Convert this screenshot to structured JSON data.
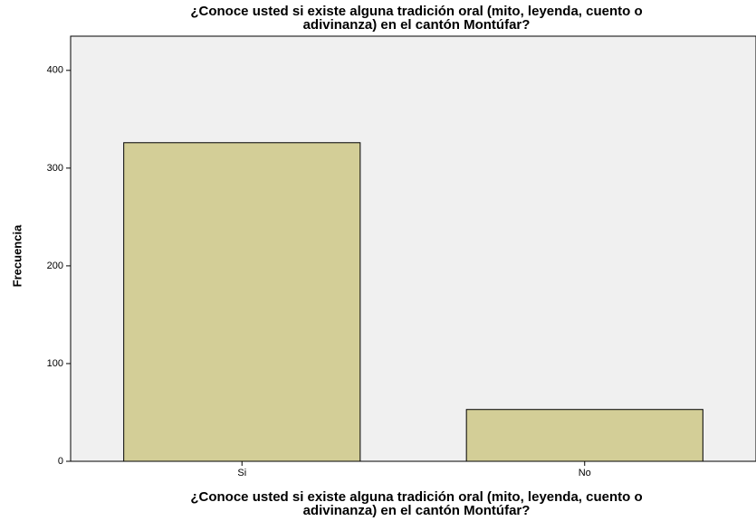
{
  "chart_data": {
    "type": "bar",
    "title": [
      "¿Conoce usted si existe alguna tradición oral (mito, leyenda, cuento o",
      "adivinanza) en el cantón Montúfar?"
    ],
    "xlabel": [
      "¿Conoce usted si existe alguna tradición oral (mito, leyenda, cuento o",
      "adivinanza) en el cantón Montúfar?"
    ],
    "ylabel": "Frecuencia",
    "categories": [
      "Si",
      "No"
    ],
    "values": [
      326,
      53
    ],
    "color": "#d3ce97",
    "ylim": [
      0,
      435
    ],
    "yticks": [
      0,
      100,
      200,
      300,
      400
    ],
    "grid": false
  }
}
